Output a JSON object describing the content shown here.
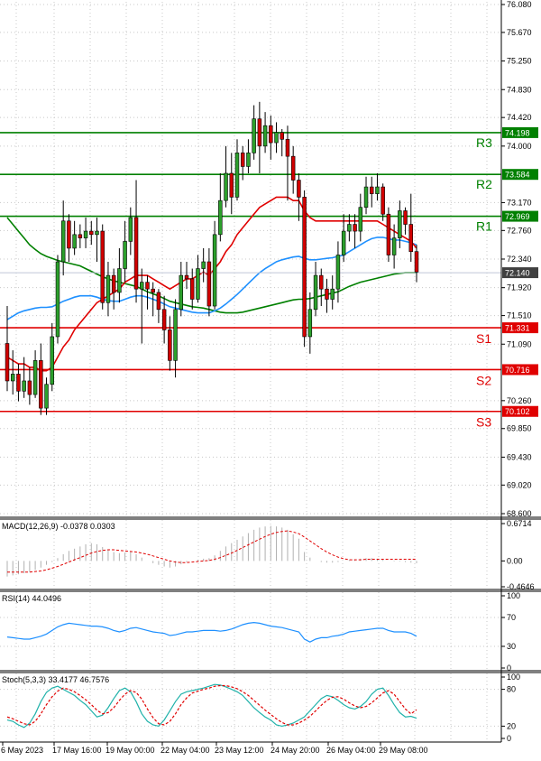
{
  "colors": {
    "bull": "#2ca02c",
    "bear": "#d10000",
    "ma_red": "#e00000",
    "ma_blue": "#1e90ff",
    "ma_green": "#008000",
    "resistance": "#008000",
    "support": "#e00000",
    "price_box": "#404040",
    "grid": "#c8c8c8",
    "macd_hist": "#b0b0b0",
    "macd_signal": "#e00000",
    "rsi_line": "#1e90ff",
    "stoch_main": "#20b2aa",
    "stoch_signal": "#e00000"
  },
  "chart_data": [
    {
      "type": "candlestick",
      "ylim": [
        68.6,
        76.08
      ],
      "price_ticks": [
        "76.080",
        "75.670",
        "75.250",
        "74.830",
        "74.420",
        "74.000",
        "73.170",
        "72.760",
        "72.340",
        "71.920",
        "71.510",
        "71.090",
        "70.260",
        "69.850",
        "69.430",
        "69.020",
        "68.600"
      ],
      "x_labels": [
        "6 May 2023",
        "17 May 16:00",
        "19 May 00:00",
        "22 May 04:00",
        "23 May 12:00",
        "24 May 20:00",
        "26 May 04:00",
        "29 May 08:00"
      ],
      "levels": [
        {
          "label": "R3",
          "value": 74.198,
          "box": "74.198",
          "kind": "resistance"
        },
        {
          "label": "R2",
          "value": 73.584,
          "box": "73.584",
          "kind": "resistance"
        },
        {
          "label": "R1",
          "value": 72.969,
          "box": "72.969",
          "kind": "resistance"
        },
        {
          "label": "S1",
          "value": 71.331,
          "box": "71.331",
          "kind": "support"
        },
        {
          "label": "S2",
          "value": 70.716,
          "box": "70.716",
          "kind": "support"
        },
        {
          "label": "S3",
          "value": 70.102,
          "box": "70.102",
          "kind": "support"
        }
      ],
      "current_price": {
        "value": 72.14,
        "box": "72.140"
      },
      "candles": [
        [
          71.1,
          70.55,
          71.65,
          70.4
        ],
        [
          70.55,
          70.65,
          71.0,
          70.35
        ],
        [
          70.65,
          70.4,
          70.8,
          70.25
        ],
        [
          70.4,
          70.55,
          70.9,
          70.3
        ],
        [
          70.55,
          70.35,
          70.75,
          70.2
        ],
        [
          70.35,
          70.85,
          71.0,
          70.3
        ],
        [
          70.85,
          70.15,
          71.1,
          70.05
        ],
        [
          70.15,
          70.5,
          70.6,
          70.05
        ],
        [
          70.5,
          71.2,
          71.4,
          70.4
        ],
        [
          71.2,
          72.3,
          72.4,
          71.1
        ],
        [
          72.3,
          72.9,
          73.2,
          72.1
        ],
        [
          72.9,
          72.5,
          73.0,
          72.3
        ],
        [
          72.5,
          72.7,
          72.9,
          72.4
        ],
        [
          72.7,
          72.65,
          72.85,
          72.5
        ],
        [
          72.65,
          72.75,
          72.95,
          72.5
        ],
        [
          72.75,
          72.7,
          72.9,
          72.55
        ],
        [
          72.7,
          72.75,
          72.95,
          72.3
        ],
        [
          72.75,
          71.7,
          72.85,
          71.6
        ],
        [
          71.7,
          72.1,
          72.3,
          71.5
        ],
        [
          72.1,
          71.85,
          72.2,
          71.6
        ],
        [
          71.85,
          72.2,
          72.5,
          71.7
        ],
        [
          72.2,
          72.6,
          72.9,
          72.0
        ],
        [
          72.6,
          72.95,
          73.1,
          72.4
        ],
        [
          72.95,
          71.9,
          73.5,
          71.7
        ],
        [
          71.9,
          72.0,
          72.2,
          71.1
        ],
        [
          72.0,
          71.9,
          72.1,
          71.6
        ],
        [
          71.9,
          71.85,
          72.0,
          71.5
        ],
        [
          71.85,
          71.6,
          71.9,
          71.4
        ],
        [
          71.6,
          71.3,
          71.8,
          71.1
        ],
        [
          71.3,
          70.85,
          71.5,
          70.7
        ],
        [
          70.85,
          71.6,
          71.75,
          70.6
        ],
        [
          71.6,
          72.1,
          72.3,
          71.5
        ],
        [
          72.1,
          72.05,
          72.3,
          71.9
        ],
        [
          72.05,
          71.75,
          72.2,
          71.6
        ],
        [
          71.75,
          72.2,
          72.4,
          71.7
        ],
        [
          72.2,
          72.3,
          72.5,
          72.0
        ],
        [
          72.3,
          71.65,
          72.5,
          71.5
        ],
        [
          71.65,
          72.7,
          72.9,
          71.6
        ],
        [
          72.7,
          73.2,
          73.6,
          72.6
        ],
        [
          73.2,
          73.6,
          74.0,
          73.1
        ],
        [
          73.6,
          73.25,
          73.9,
          73.0
        ],
        [
          73.25,
          73.9,
          74.1,
          73.2
        ],
        [
          73.9,
          73.7,
          74.0,
          73.5
        ],
        [
          73.7,
          73.9,
          74.1,
          73.6
        ],
        [
          73.9,
          74.4,
          74.6,
          73.8
        ],
        [
          74.4,
          74.0,
          74.65,
          73.6
        ],
        [
          74.0,
          74.3,
          74.5,
          73.9
        ],
        [
          74.3,
          74.05,
          74.45,
          73.8
        ],
        [
          74.05,
          74.2,
          74.35,
          73.9
        ],
        [
          74.2,
          74.1,
          74.25,
          73.85
        ],
        [
          74.1,
          73.85,
          74.3,
          73.2
        ],
        [
          73.85,
          73.5,
          74.0,
          73.3
        ],
        [
          73.5,
          73.25,
          73.6,
          72.9
        ],
        [
          73.25,
          71.2,
          73.35,
          71.05
        ],
        [
          71.2,
          71.6,
          71.85,
          70.95
        ],
        [
          71.6,
          72.1,
          72.3,
          71.5
        ],
        [
          72.1,
          71.9,
          72.2,
          71.65
        ],
        [
          71.9,
          71.75,
          72.05,
          71.55
        ],
        [
          71.75,
          71.9,
          72.1,
          71.6
        ],
        [
          71.9,
          72.4,
          72.6,
          71.7
        ],
        [
          72.4,
          72.75,
          73.0,
          72.3
        ],
        [
          72.75,
          72.85,
          73.0,
          72.6
        ],
        [
          72.85,
          72.75,
          73.0,
          72.5
        ],
        [
          72.75,
          73.1,
          73.3,
          72.6
        ],
        [
          73.1,
          73.4,
          73.55,
          73.0
        ],
        [
          73.4,
          73.3,
          73.55,
          73.1
        ],
        [
          73.3,
          73.4,
          73.6,
          73.2
        ],
        [
          73.4,
          73.0,
          73.45,
          72.9
        ],
        [
          73.0,
          72.4,
          73.1,
          72.3
        ],
        [
          72.4,
          72.65,
          72.85,
          72.2
        ],
        [
          72.65,
          73.05,
          73.2,
          72.5
        ],
        [
          73.05,
          72.85,
          73.1,
          72.7
        ],
        [
          72.85,
          72.45,
          73.3,
          72.3
        ],
        [
          72.45,
          72.15,
          72.55,
          72.0
        ]
      ],
      "ma_red": [
        70.9,
        70.85,
        70.8,
        70.8,
        70.75,
        70.75,
        70.7,
        70.7,
        70.75,
        70.9,
        71.05,
        71.15,
        71.3,
        71.4,
        71.5,
        71.6,
        71.7,
        71.75,
        71.8,
        71.85,
        71.9,
        72.0,
        72.05,
        72.1,
        72.1,
        72.1,
        72.05,
        72.0,
        71.95,
        71.9,
        71.95,
        72.0,
        72.05,
        72.05,
        72.1,
        72.15,
        72.1,
        72.2,
        72.3,
        72.45,
        72.55,
        72.7,
        72.8,
        72.9,
        73.0,
        73.1,
        73.15,
        73.2,
        73.25,
        73.25,
        73.25,
        73.2,
        73.2,
        73.05,
        72.95,
        72.9,
        72.9,
        72.9,
        72.9,
        72.9,
        72.9,
        72.9,
        72.9,
        72.9,
        72.9,
        72.9,
        72.9,
        72.85,
        72.8,
        72.75,
        72.7,
        72.65,
        72.6,
        72.5
      ],
      "ma_blue": [
        71.45,
        71.5,
        71.55,
        71.58,
        71.6,
        71.62,
        71.63,
        71.63,
        71.64,
        71.68,
        71.72,
        71.75,
        71.78,
        71.8,
        71.8,
        71.8,
        71.78,
        71.75,
        71.73,
        71.72,
        71.72,
        71.75,
        71.78,
        71.8,
        71.8,
        71.78,
        71.75,
        71.72,
        71.68,
        71.64,
        71.62,
        71.6,
        71.58,
        71.56,
        71.55,
        71.55,
        71.55,
        71.58,
        71.62,
        71.68,
        71.75,
        71.82,
        71.9,
        71.98,
        72.06,
        72.14,
        72.2,
        72.25,
        72.3,
        72.33,
        72.35,
        72.37,
        72.38,
        72.35,
        72.33,
        72.33,
        72.34,
        72.35,
        72.36,
        72.38,
        72.4,
        72.45,
        72.5,
        72.55,
        72.6,
        72.64,
        72.66,
        72.66,
        72.64,
        72.62,
        72.62,
        72.6,
        72.58,
        72.55
      ],
      "ma_green": [
        72.95,
        72.85,
        72.75,
        72.65,
        72.55,
        72.48,
        72.42,
        72.38,
        72.35,
        72.32,
        72.3,
        72.28,
        72.26,
        72.24,
        72.2,
        72.16,
        72.12,
        72.08,
        72.05,
        72.02,
        72.0,
        71.98,
        71.96,
        71.94,
        71.9,
        71.86,
        71.83,
        71.8,
        71.76,
        71.72,
        71.7,
        71.68,
        71.66,
        71.64,
        71.63,
        71.62,
        71.6,
        71.58,
        71.56,
        71.55,
        71.55,
        71.55,
        71.56,
        71.58,
        71.6,
        71.62,
        71.64,
        71.66,
        71.68,
        71.7,
        71.72,
        71.74,
        71.75,
        71.75,
        71.76,
        71.78,
        71.8,
        71.82,
        71.84,
        71.86,
        71.9,
        71.94,
        71.97,
        72.0,
        72.02,
        72.04,
        72.06,
        72.08,
        72.1,
        72.12,
        72.13,
        72.14,
        72.14,
        72.14
      ]
    },
    {
      "type": "bar",
      "label": "MACD(12,26,9) -0.0378 0.0303",
      "ylim": [
        -0.4646,
        0.6714
      ],
      "ticks": [
        "0.6714",
        "0.00",
        "-0.4646"
      ],
      "values": [
        -0.28,
        -0.26,
        -0.24,
        -0.22,
        -0.2,
        -0.16,
        -0.12,
        -0.07,
        -0.02,
        0.05,
        0.12,
        0.18,
        0.22,
        0.26,
        0.3,
        0.32,
        0.3,
        0.25,
        0.2,
        0.16,
        0.14,
        0.15,
        0.16,
        0.12,
        0.06,
        0.0,
        -0.04,
        -0.07,
        -0.1,
        -0.12,
        -0.1,
        -0.06,
        -0.02,
        0.0,
        0.02,
        0.04,
        0.05,
        0.1,
        0.18,
        0.26,
        0.32,
        0.38,
        0.44,
        0.5,
        0.56,
        0.6,
        0.62,
        0.63,
        0.62,
        0.6,
        0.56,
        0.48,
        0.4,
        0.16,
        0.06,
        0.0,
        -0.02,
        -0.03,
        -0.03,
        -0.02,
        0.0,
        0.02,
        0.03,
        0.04,
        0.05,
        0.05,
        0.04,
        0.02,
        0.0,
        -0.01,
        -0.01,
        -0.02,
        -0.03,
        -0.04
      ],
      "signal": [
        -0.2,
        -0.2,
        -0.2,
        -0.2,
        -0.2,
        -0.19,
        -0.18,
        -0.16,
        -0.13,
        -0.1,
        -0.06,
        -0.02,
        0.02,
        0.06,
        0.1,
        0.14,
        0.17,
        0.19,
        0.2,
        0.2,
        0.19,
        0.18,
        0.17,
        0.16,
        0.14,
        0.12,
        0.09,
        0.06,
        0.03,
        0.0,
        -0.02,
        -0.03,
        -0.03,
        -0.02,
        -0.01,
        0.0,
        0.01,
        0.03,
        0.06,
        0.1,
        0.14,
        0.19,
        0.24,
        0.29,
        0.34,
        0.39,
        0.44,
        0.48,
        0.51,
        0.53,
        0.54,
        0.52,
        0.49,
        0.43,
        0.36,
        0.29,
        0.22,
        0.16,
        0.11,
        0.07,
        0.04,
        0.02,
        0.02,
        0.02,
        0.03,
        0.03,
        0.03,
        0.03,
        0.03,
        0.03,
        0.03,
        0.03,
        0.03,
        0.03
      ]
    },
    {
      "type": "line",
      "label": "RSI(14) 44.0496",
      "ylim": [
        0,
        100
      ],
      "ticks": [
        "100",
        "70",
        "30",
        "0"
      ],
      "values": [
        43,
        42,
        41,
        40,
        40,
        42,
        44,
        47,
        52,
        57,
        60,
        62,
        61,
        60,
        59,
        58,
        58,
        57,
        55,
        52,
        50,
        52,
        55,
        56,
        54,
        52,
        50,
        49,
        48,
        45,
        46,
        48,
        50,
        50,
        51,
        52,
        52,
        52,
        51,
        52,
        54,
        57,
        60,
        62,
        63,
        62,
        60,
        58,
        57,
        56,
        54,
        52,
        50,
        40,
        36,
        40,
        42,
        42,
        44,
        45,
        47,
        50,
        51,
        52,
        53,
        54,
        55,
        55,
        52,
        50,
        50,
        50,
        48,
        44
      ]
    },
    {
      "type": "line",
      "label": "Stoch(5,3,3) 33.4177 46.7576",
      "ylim": [
        0,
        100
      ],
      "ticks": [
        "100",
        "80",
        "20",
        "0"
      ],
      "values": [
        30,
        28,
        22,
        18,
        25,
        40,
        60,
        75,
        82,
        85,
        80,
        75,
        70,
        62,
        55,
        45,
        35,
        38,
        50,
        65,
        78,
        82,
        76,
        60,
        40,
        28,
        22,
        20,
        30,
        45,
        60,
        72,
        76,
        78,
        80,
        82,
        85,
        88,
        87,
        84,
        80,
        76,
        70,
        60,
        50,
        42,
        35,
        30,
        22,
        20,
        22,
        25,
        30,
        35,
        45,
        55,
        65,
        70,
        68,
        62,
        55,
        50,
        48,
        52,
        60,
        72,
        80,
        82,
        70,
        55,
        42,
        35,
        36,
        33
      ],
      "signal": [
        35,
        32,
        28,
        24,
        22,
        28,
        40,
        55,
        68,
        77,
        82,
        80,
        76,
        70,
        63,
        55,
        46,
        40,
        42,
        50,
        62,
        72,
        78,
        75,
        64,
        48,
        34,
        24,
        22,
        28,
        40,
        55,
        66,
        74,
        77,
        80,
        82,
        85,
        86,
        86,
        84,
        81,
        76,
        70,
        62,
        54,
        46,
        39,
        32,
        26,
        22,
        22,
        25,
        30,
        36,
        45,
        54,
        62,
        67,
        68,
        64,
        58,
        53,
        50,
        52,
        58,
        66,
        74,
        78,
        72,
        60,
        48,
        40,
        46.76
      ]
    }
  ]
}
